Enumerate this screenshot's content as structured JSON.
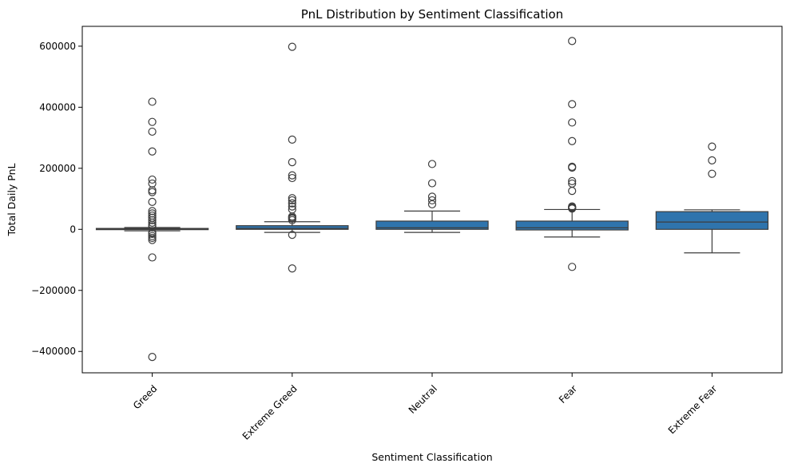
{
  "chart_data": {
    "type": "box",
    "title": "PnL Distribution by Sentiment Classification",
    "xlabel": "Sentiment Classification",
    "ylabel": "Total Daily PnL",
    "ylim": [
      -470000,
      665000
    ],
    "yticks": [
      -400000,
      -200000,
      0,
      200000,
      400000,
      600000
    ],
    "ytick_labels": [
      "−400000",
      "−200000",
      "0",
      "200000",
      "400000",
      "600000"
    ],
    "grid": false,
    "box_color": "#2f74ad",
    "line_color": "#3d3d3d",
    "categories": [
      "Greed",
      "Extreme Greed",
      "Neutral",
      "Fear",
      "Extreme Fear"
    ],
    "boxes": [
      {
        "category": "Greed",
        "q1": -1000,
        "median": 1000,
        "q3": 3000,
        "whisker_low": -5000,
        "whisker_high": 6000,
        "outliers": [
          418000,
          352000,
          320000,
          255000,
          163000,
          150000,
          128000,
          122000,
          90000,
          60000,
          52000,
          45000,
          38000,
          30000,
          22000,
          15000,
          10000,
          -10000,
          -15000,
          -22000,
          -28000,
          -35000,
          -92000,
          -418000
        ]
      },
      {
        "category": "Extreme Greed",
        "q1": 0,
        "median": 3000,
        "q3": 12000,
        "whisker_low": -10000,
        "whisker_high": 25000,
        "outliers": [
          598000,
          294000,
          220000,
          177000,
          168000,
          102000,
          95000,
          85000,
          75000,
          65000,
          42000,
          38000,
          35000,
          30000,
          -18000,
          -128000
        ]
      },
      {
        "category": "Neutral",
        "q1": 0,
        "median": 5000,
        "q3": 27000,
        "whisker_low": -10000,
        "whisker_high": 60000,
        "outliers": [
          214000,
          151000,
          107000,
          95000,
          82000
        ]
      },
      {
        "category": "Fear",
        "q1": -2000,
        "median": 5000,
        "q3": 27000,
        "whisker_low": -25000,
        "whisker_high": 65000,
        "outliers": [
          617000,
          410000,
          350000,
          289000,
          205000,
          202000,
          158000,
          150000,
          126000,
          75000,
          72000,
          70000,
          68000,
          -123000
        ]
      },
      {
        "category": "Extreme Fear",
        "q1": 0,
        "median": 24000,
        "q3": 58000,
        "whisker_low": -77000,
        "whisker_high": 64000,
        "outliers": [
          271000,
          226000,
          182000
        ]
      }
    ]
  }
}
